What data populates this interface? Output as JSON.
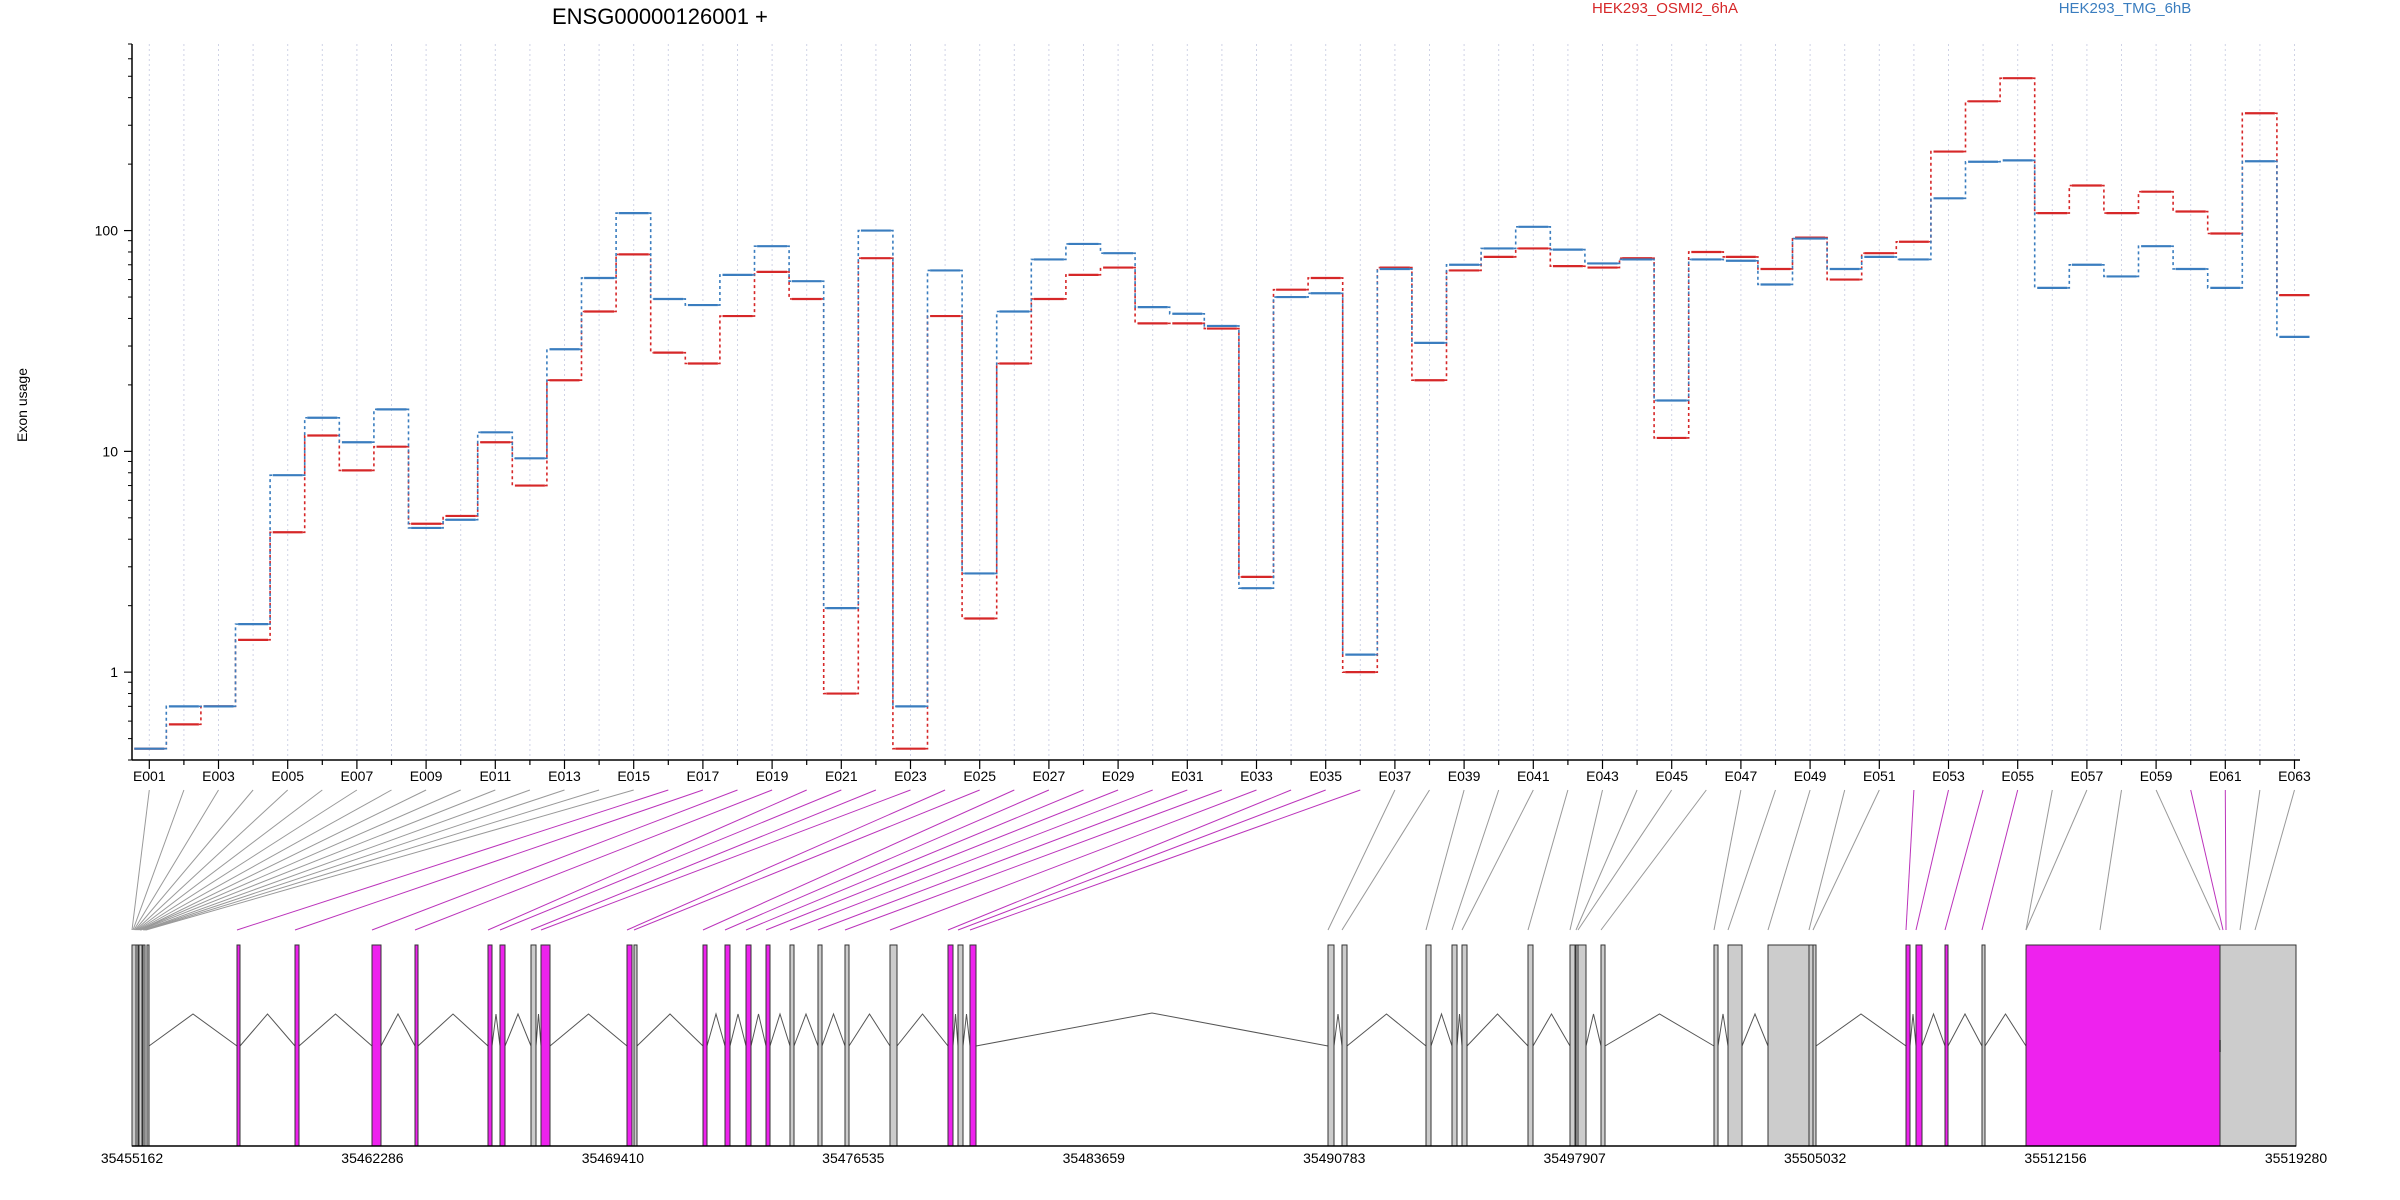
{
  "chart_data": [
    {
      "type": "line",
      "title": "ENSG00000126001 +",
      "xlabel": "",
      "ylabel": "Exon usage",
      "yscale": "log",
      "ylim": [
        0.4,
        700
      ],
      "yticks": [
        "1",
        "10",
        "100"
      ],
      "grid": "vertical dotted",
      "categories": [
        "E001",
        "E002",
        "E003",
        "E004",
        "E005",
        "E006",
        "E007",
        "E008",
        "E009",
        "E010",
        "E011",
        "E012",
        "E013",
        "E014",
        "E015",
        "E016",
        "E017",
        "E018",
        "E019",
        "E020",
        "E021",
        "E022",
        "E023",
        "E024",
        "E025",
        "E026",
        "E027",
        "E028",
        "E029",
        "E030",
        "E031",
        "E032",
        "E033",
        "E034",
        "E035",
        "E036",
        "E037",
        "E038",
        "E039",
        "E040",
        "E041",
        "E042",
        "E043",
        "E044",
        "E045",
        "E046",
        "E047",
        "E048",
        "E049",
        "E050",
        "E051",
        "E052",
        "E053",
        "E054",
        "E055",
        "E056",
        "E057",
        "E058",
        "E059",
        "E060",
        "E061",
        "E062",
        "E063"
      ],
      "tick_labels": [
        "E001",
        "E003",
        "E005",
        "E007",
        "E009",
        "E011",
        "E013",
        "E015",
        "E017",
        "E019",
        "E021",
        "E023",
        "E025",
        "E027",
        "E029",
        "E031",
        "E033",
        "E035",
        "E037",
        "E039",
        "E041",
        "E043",
        "E045",
        "E047",
        "E049",
        "E051",
        "E053",
        "E055",
        "E057",
        "E059",
        "E061",
        "E063"
      ],
      "series": [
        {
          "name": "HEK293_OSMI2_6hA",
          "color": "#d62728",
          "values": [
            0.45,
            0.58,
            0.7,
            1.4,
            4.3,
            11.8,
            8.2,
            10.5,
            4.7,
            5.1,
            11,
            7,
            21,
            43,
            78,
            28,
            25,
            41,
            65,
            49,
            0.8,
            75,
            0.45,
            41,
            1.75,
            25,
            49,
            63,
            68,
            38,
            38,
            36,
            2.7,
            54,
            61,
            1.0,
            68,
            21,
            66,
            76,
            83,
            69,
            68,
            75,
            11.5,
            80,
            76,
            67,
            93,
            60,
            79,
            89,
            228,
            385,
            490,
            120,
            160,
            120,
            150,
            122,
            97,
            340,
            51
          ]
        },
        {
          "name": "HEK293_TMG_6hB",
          "color": "#3a7dbf",
          "values": [
            0.45,
            0.7,
            0.7,
            1.65,
            7.8,
            14.2,
            11,
            15.5,
            4.5,
            4.9,
            12.2,
            9.3,
            29,
            61,
            120,
            49,
            46,
            63,
            85,
            59,
            1.95,
            100,
            0.7,
            66,
            2.8,
            43,
            74,
            87,
            79,
            45,
            42,
            37,
            2.4,
            50,
            52,
            1.2,
            67,
            31,
            70,
            83,
            104,
            82,
            71,
            74,
            17,
            74,
            73,
            57,
            92,
            67,
            76,
            74,
            140,
            205,
            208,
            55,
            70,
            62,
            85,
            67,
            55,
            206,
            33
          ]
        }
      ]
    },
    {
      "type": "gene_model",
      "coordinates": [
        "35455162",
        "35462286",
        "35469410",
        "35476535",
        "35483659",
        "35490783",
        "35497907",
        "35505032",
        "35512156",
        "35519280"
      ],
      "colors": {
        "exon": "#cccccc",
        "highlight": "#ee22ee"
      }
    }
  ]
}
